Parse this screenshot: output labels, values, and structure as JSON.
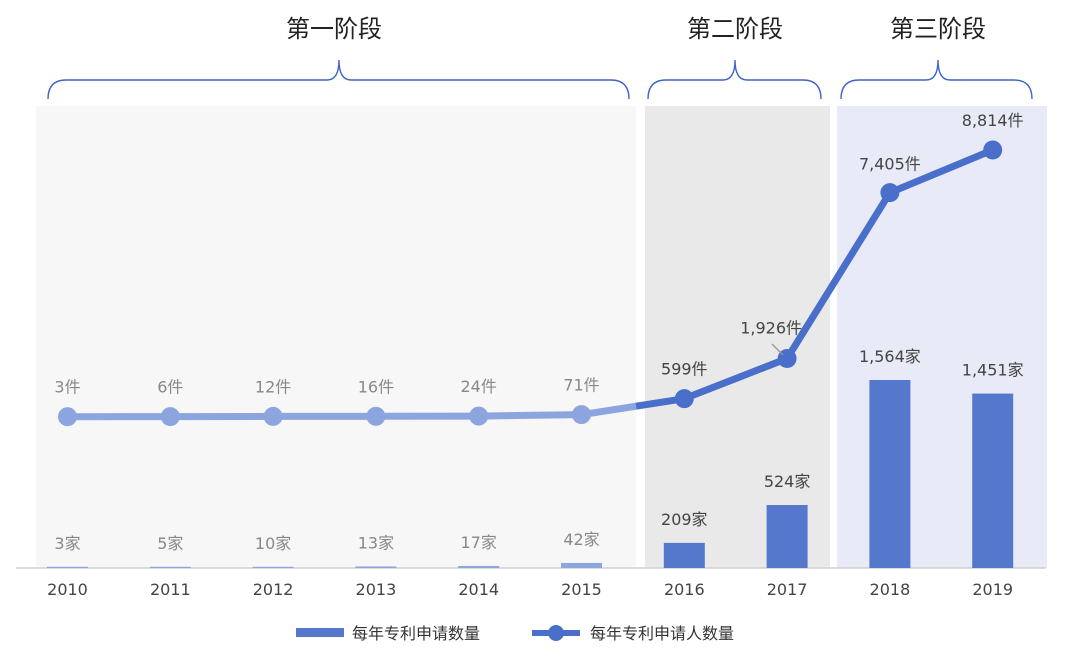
{
  "chart_data": {
    "type": "bar",
    "categories": [
      "2010",
      "2011",
      "2012",
      "2013",
      "2014",
      "2015",
      "2016",
      "2017",
      "2018",
      "2019"
    ],
    "series": [
      {
        "name": "每年专利申请数量",
        "kind": "bar",
        "values": [
          3,
          5,
          10,
          13,
          17,
          42,
          209,
          524,
          1564,
          1451
        ],
        "labels": [
          "3家",
          "5家",
          "10家",
          "13家",
          "17家",
          "42家",
          "209家",
          "524家",
          "1,564家",
          "1,451家"
        ]
      },
      {
        "name": "每年专利申请人数量",
        "kind": "line",
        "values": [
          3,
          6,
          12,
          16,
          24,
          71,
          599,
          1926,
          7405,
          8814
        ],
        "labels": [
          "3件",
          "6件",
          "12件",
          "16件",
          "24件",
          "71件",
          "599件",
          "1,926件",
          "7,405件",
          "8,814件"
        ]
      }
    ],
    "stages": [
      {
        "title": "第一阶段",
        "from": "2010",
        "to": "2015",
        "bg": "#f7f7f7"
      },
      {
        "title": "第二阶段",
        "from": "2016",
        "to": "2017",
        "bg": "#e9e9e9"
      },
      {
        "title": "第三阶段",
        "from": "2018",
        "to": "2019",
        "bg": "#e8ebf7"
      }
    ],
    "colors": {
      "bar": "#5578cc",
      "bar_faded": "#8ea6de",
      "line": "#4a6fcb",
      "line_faded": "#8da5de",
      "brace": "#3d63c6",
      "label_faded": "#888888",
      "label_strong": "#444444"
    },
    "legend_placement": "bottom-center",
    "grid": false
  }
}
